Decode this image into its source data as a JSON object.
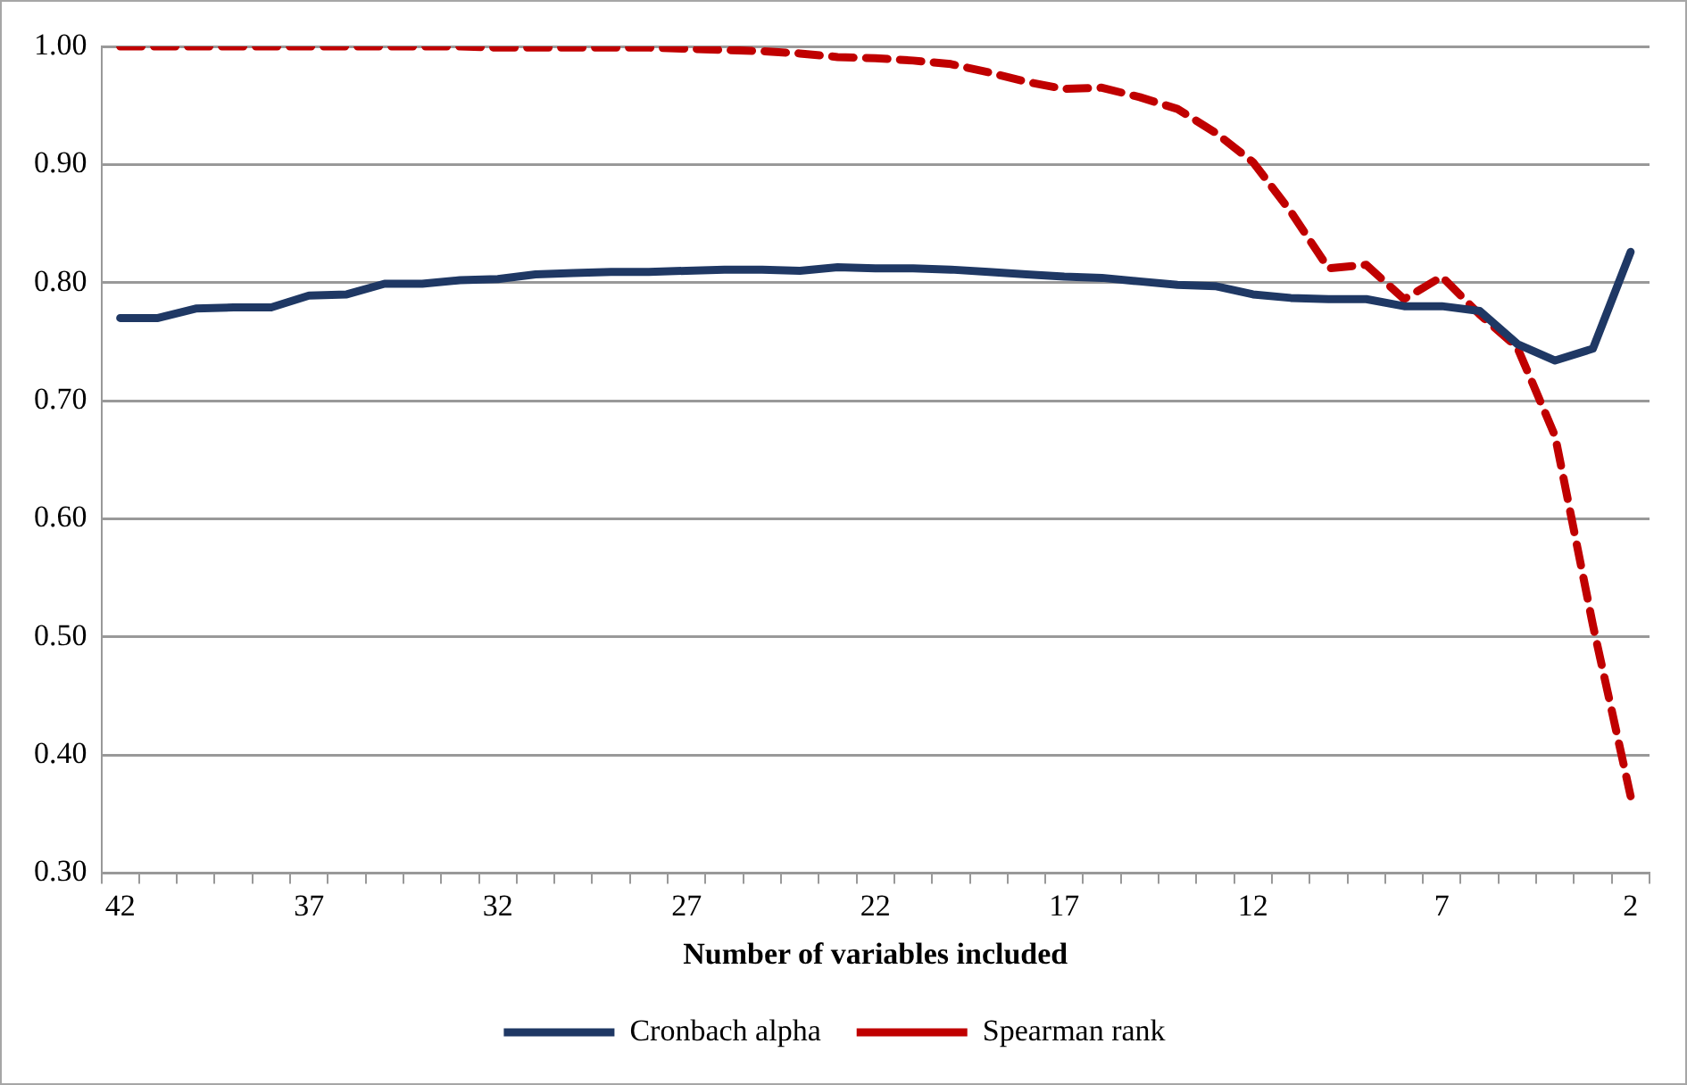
{
  "chart_data": {
    "type": "line",
    "xlabel": "Number of variables included",
    "categories": [
      "42",
      null,
      null,
      null,
      null,
      "37",
      null,
      null,
      null,
      null,
      "32",
      null,
      null,
      null,
      null,
      "27",
      null,
      null,
      null,
      null,
      "22",
      null,
      null,
      null,
      null,
      "17",
      null,
      null,
      null,
      null,
      "12",
      null,
      null,
      null,
      null,
      "7",
      null,
      null,
      null,
      null,
      "2"
    ],
    "series": [
      {
        "name": "Cronbach alpha",
        "color": "#1f3864",
        "line_style": "solid",
        "values": [
          0.77,
          0.77,
          0.778,
          0.779,
          0.779,
          0.789,
          0.79,
          0.799,
          0.799,
          0.802,
          0.803,
          0.807,
          0.808,
          0.809,
          0.809,
          0.81,
          0.811,
          0.811,
          0.81,
          0.813,
          0.812,
          0.812,
          0.811,
          0.809,
          0.807,
          0.805,
          0.804,
          0.801,
          0.798,
          0.797,
          0.79,
          0.787,
          0.786,
          0.786,
          0.78,
          0.78,
          0.776,
          0.748,
          0.734,
          0.744,
          0.826
        ]
      },
      {
        "name": "Spearman rank",
        "color": "#c00000",
        "line_style": "dashed",
        "values": [
          1.0,
          1.0,
          1.0,
          1.0,
          1.0,
          1.0,
          1.0,
          1.0,
          1.0,
          1.0,
          0.999,
          0.999,
          0.999,
          0.999,
          0.999,
          0.998,
          0.997,
          0.996,
          0.994,
          0.991,
          0.99,
          0.988,
          0.985,
          0.978,
          0.97,
          0.964,
          0.965,
          0.957,
          0.947,
          0.927,
          0.902,
          0.86,
          0.812,
          0.815,
          0.786,
          0.805,
          0.773,
          0.745,
          0.67,
          0.51,
          0.365
        ]
      }
    ],
    "ylim": [
      0.3,
      1.0
    ],
    "yticks": [
      {
        "value": 0.3,
        "label": "0.30"
      },
      {
        "value": 0.4,
        "label": "0.40"
      },
      {
        "value": 0.5,
        "label": "0.50"
      },
      {
        "value": 0.6,
        "label": "0.60"
      },
      {
        "value": 0.7,
        "label": "0.70"
      },
      {
        "value": 0.8,
        "label": "0.80"
      },
      {
        "value": 0.9,
        "label": "0.90"
      },
      {
        "value": 1.0,
        "label": "1.00"
      }
    ],
    "grid": "y",
    "legend": "bottom",
    "marker": "none"
  }
}
